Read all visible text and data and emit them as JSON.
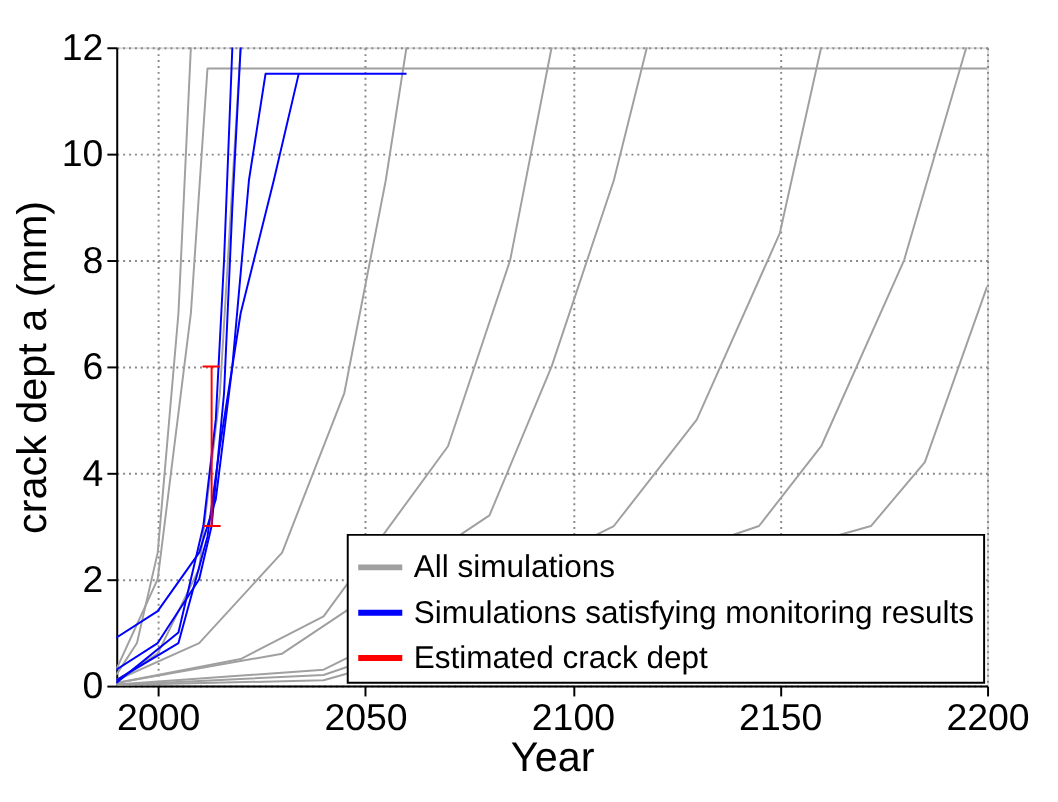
{
  "chart_data": {
    "type": "line",
    "xlabel": "Year",
    "ylabel": "crack dept a (mm)",
    "xlim": [
      1990,
      2200
    ],
    "xticks": [
      2000,
      2050,
      2100,
      2150,
      2200
    ],
    "ylim": [
      0,
      12
    ],
    "yticks": [
      0,
      2,
      4,
      6,
      8,
      10,
      12
    ],
    "grid": true,
    "legend": "bottom right",
    "line_style": "solid",
    "series": [
      {
        "name": "All simulations",
        "color": "#a0a0a0",
        "x": [
          1990,
          1995,
          2000,
          2005,
          2008
        ],
        "values": [
          0.2,
          0.8,
          2.5,
          7,
          12
        ]
      },
      {
        "color": "#a0a0a0",
        "x": [
          1990,
          2000,
          2010,
          2015,
          2020
        ],
        "values": [
          0.1,
          0.6,
          2.2,
          5.5,
          12
        ]
      },
      {
        "color": "#a0a0a0",
        "x": [
          1990,
          2010,
          2030,
          2045,
          2055,
          2060
        ],
        "values": [
          0.1,
          0.8,
          2.5,
          5.5,
          9.5,
          12
        ]
      },
      {
        "color": "#a0a0a0",
        "x": [
          1990,
          2020,
          2040,
          2070,
          2085,
          2095
        ],
        "values": [
          0.05,
          0.5,
          1.3,
          4.5,
          8,
          12
        ]
      },
      {
        "color": "#a0a0a0",
        "x": [
          1990,
          2030,
          2080,
          2095,
          2110,
          2118
        ],
        "values": [
          0.05,
          0.6,
          3.2,
          6,
          9.5,
          12
        ]
      },
      {
        "color": "#a0a0a0",
        "x": [
          1990,
          2040,
          2110,
          2130,
          2150,
          2160
        ],
        "values": [
          0.02,
          0.3,
          3,
          5,
          8.5,
          12
        ]
      },
      {
        "color": "#a0a0a0",
        "x": [
          1990,
          2040,
          2145,
          2160,
          2180,
          2195
        ],
        "values": [
          0.01,
          0.2,
          3,
          4.5,
          8,
          12
        ]
      },
      {
        "color": "#a0a0a0",
        "x": [
          1990,
          2040,
          2172,
          2185,
          2200
        ],
        "values": [
          0.01,
          0.1,
          3,
          4.2,
          7.5
        ]
      },
      {
        "color": "#a0a0a0",
        "x": [
          1990,
          2000,
          2008,
          2012,
          2200
        ],
        "values": [
          0.3,
          2,
          7,
          11.6,
          11.6
        ]
      },
      {
        "name": "Simulations satisfying monitoring results",
        "color": "#0000ff",
        "x": [
          1990,
          2000,
          2010,
          2013,
          2016,
          2018,
          2020
        ],
        "values": [
          0.3,
          0.8,
          2,
          3,
          5.5,
          9,
          12
        ]
      },
      {
        "color": "#0000ff",
        "x": [
          1990,
          2000,
          2010,
          2014,
          2018,
          2022,
          2026,
          2060
        ],
        "values": [
          0.9,
          1.4,
          2.5,
          3.5,
          6,
          9.5,
          11.5,
          11.5
        ]
      },
      {
        "color": "#0000ff",
        "x": [
          1990,
          2005,
          2012,
          2015,
          2020,
          2028,
          2034
        ],
        "values": [
          0.1,
          0.8,
          2.8,
          4.5,
          7,
          9.5,
          11.5
        ]
      },
      {
        "color": "#0000ff",
        "x": [
          1990,
          2005,
          2011,
          2014,
          2016,
          2018
        ],
        "values": [
          0.05,
          1,
          3,
          5,
          8,
          12
        ]
      },
      {
        "name": "Estimated crack dept",
        "color": "#ff0000",
        "x": [
          2011,
          2015,
          2013,
          2013,
          2011,
          2015
        ],
        "values": [
          3,
          3,
          3,
          6,
          6,
          6
        ]
      }
    ]
  }
}
